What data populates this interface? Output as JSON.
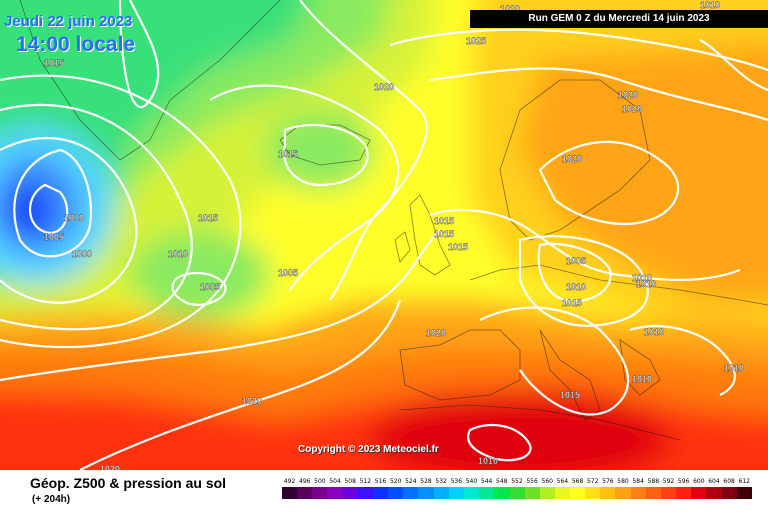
{
  "header": {
    "forecast_date": "Jeudi 22 juin 2023",
    "forecast_time": "14:00 locale",
    "run_info": "Run GEM 0 Z du Mercredi 14 juin 2023"
  },
  "footer": {
    "product_title": "Géop. Z500 & pression au sol",
    "lead_time": "(+ 204h)",
    "copyright": "Copyright © 2023 Meteociel.fr"
  },
  "colors": {
    "low_deep": "#0a3cff",
    "low": "#3d8dff",
    "cyan": "#55d6ff",
    "green": "#38e07a",
    "light_green": "#8aea5e",
    "yellow_green": "#d6f238",
    "yellow": "#ffff2a",
    "gold": "#ffd01a",
    "orange": "#ffa412",
    "dark_orange": "#ff7a10",
    "red": "#ff3010",
    "dark_red": "#e00010",
    "isobar": "#ffffff"
  },
  "isobar_labels": [
    {
      "text": "1010"
    },
    {
      "text": "1015"
    },
    {
      "text": "1020"
    },
    {
      "text": "1025"
    },
    {
      "text": "1020"
    },
    {
      "text": "1020"
    },
    {
      "text": "1020"
    },
    {
      "text": "1020"
    },
    {
      "text": "1015"
    },
    {
      "text": "1000"
    },
    {
      "text": "1005"
    },
    {
      "text": "1000"
    },
    {
      "text": "1015"
    },
    {
      "text": "1010"
    },
    {
      "text": "1015"
    },
    {
      "text": "1015"
    },
    {
      "text": "1015"
    },
    {
      "text": "1005"
    },
    {
      "text": "1005"
    },
    {
      "text": "1005"
    },
    {
      "text": "1010"
    },
    {
      "text": "1010"
    },
    {
      "text": "1015"
    },
    {
      "text": "1010"
    },
    {
      "text": "1020"
    },
    {
      "text": "1010"
    },
    {
      "text": "1010"
    },
    {
      "text": "1020"
    },
    {
      "text": "1015"
    },
    {
      "text": "1010"
    },
    {
      "text": "1010"
    },
    {
      "text": "1020"
    }
  ],
  "scale": {
    "labels": [
      "492",
      "496",
      "500",
      "504",
      "508",
      "512",
      "516",
      "520",
      "524",
      "528",
      "532",
      "536",
      "540",
      "544",
      "548",
      "552",
      "556",
      "560",
      "564",
      "568",
      "572",
      "576",
      "580",
      "584",
      "588",
      "592",
      "596",
      "600",
      "604",
      "608",
      "612"
    ],
    "colors": [
      "#300030",
      "#5a005a",
      "#7a0090",
      "#8a00c0",
      "#6a00e0",
      "#3a10ff",
      "#1030ff",
      "#0050ff",
      "#0070ff",
      "#0090ff",
      "#00b0ff",
      "#00d0ff",
      "#00e8d0",
      "#00e890",
      "#00e850",
      "#30e030",
      "#70e020",
      "#b0f020",
      "#e8f820",
      "#ffff20",
      "#ffe018",
      "#ffc010",
      "#ffa010",
      "#ff8010",
      "#ff6010",
      "#ff4010",
      "#ff2010",
      "#e00010",
      "#b00010",
      "#800010",
      "#400008"
    ]
  }
}
